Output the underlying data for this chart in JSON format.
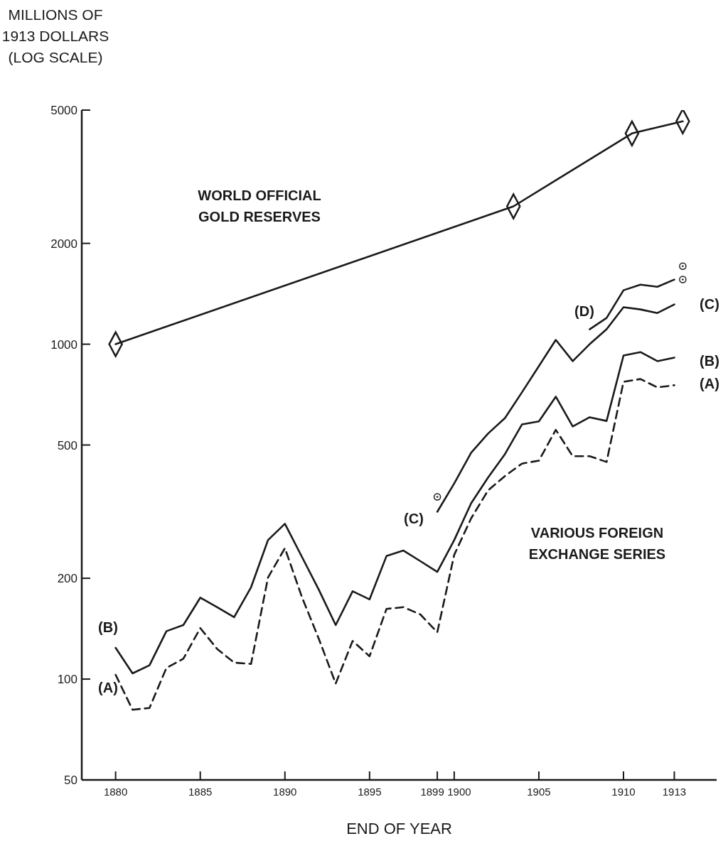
{
  "chart_data": {
    "type": "line",
    "ylabel": "MILLIONS OF 1913 DOLLARS (LOG SCALE)",
    "xlabel": "END OF YEAR",
    "log": "y",
    "xlim": [
      1878,
      1915.5
    ],
    "xticks": [
      1880,
      1885,
      1890,
      1895,
      1899,
      1900,
      1905,
      1910,
      1913
    ],
    "ylim": [
      50,
      5000
    ],
    "yticks": [
      50,
      100,
      200,
      500,
      1000,
      2000,
      5000
    ],
    "grid": false,
    "legend": false,
    "series": [
      {
        "color": "#1a1a1a",
        "marker": "diamond",
        "line_style": "solid",
        "x": [
          1880,
          1903.5,
          1910.5,
          1913.5
        ],
        "values": [
          1000,
          2580,
          4260,
          4630
        ]
      },
      {
        "color": "#1a1a1a",
        "marker": "none",
        "line_style": "dashed",
        "x": [
          1880,
          1881,
          1882,
          1883,
          1884,
          1885,
          1886,
          1887,
          1888,
          1889,
          1890,
          1891,
          1892,
          1893,
          1894,
          1895,
          1896,
          1897,
          1898,
          1899,
          1900,
          1901,
          1902,
          1903,
          1904,
          1905,
          1906,
          1907,
          1908,
          1909,
          1910,
          1911,
          1912,
          1913
        ],
        "values": [
          103,
          81,
          82,
          108,
          115,
          142,
          123,
          112,
          111,
          201,
          246,
          176,
          132,
          97,
          130,
          117,
          162,
          164,
          156,
          138,
          235,
          302,
          366,
          404,
          440,
          449,
          555,
          463,
          463,
          445,
          772,
          787,
          743,
          754
        ]
      },
      {
        "color": "#1a1a1a",
        "marker": "none",
        "line_style": "solid",
        "x": [
          1880,
          1881,
          1882,
          1883,
          1884,
          1885,
          1886,
          1887,
          1888,
          1889,
          1890,
          1891,
          1892,
          1893,
          1894,
          1895,
          1896,
          1897,
          1898,
          1899,
          1900,
          1901,
          1902,
          1903,
          1904,
          1905,
          1906,
          1907,
          1908,
          1909,
          1910,
          1911,
          1912,
          1913
        ],
        "values": [
          124,
          104,
          110,
          139,
          145,
          175,
          164,
          153,
          188,
          260,
          291,
          232,
          185,
          145,
          183,
          173,
          233,
          242,
          225,
          209,
          260,
          335,
          400,
          470,
          576,
          588,
          697,
          568,
          605,
          590,
          925,
          947,
          890,
          912
        ]
      },
      {
        "color": "#1a1a1a",
        "marker": "none",
        "line_style": "solid",
        "x": [
          1899,
          1900,
          1901,
          1902,
          1903,
          1904,
          1905,
          1906,
          1907,
          1908,
          1909,
          1910,
          1911,
          1912,
          1913
        ],
        "values": [
          316,
          384,
          474,
          541,
          602,
          718,
          860,
          1030,
          890,
          1000,
          1108,
          1289,
          1270,
          1239,
          1314
        ]
      },
      {
        "color": "#1a1a1a",
        "marker": "none",
        "line_style": "solid",
        "x": [
          1908,
          1909,
          1910,
          1911,
          1912,
          1913
        ],
        "values": [
          1108,
          1198,
          1449,
          1506,
          1484,
          1559
        ]
      },
      {
        "type": "scatter",
        "color": "#1a1a1a",
        "marker": "circle",
        "x": [
          1899,
          1913.5,
          1913.5
        ],
        "values": [
          350,
          1710,
          1560
        ]
      }
    ],
    "annotations": [
      "WORLD OFFICIAL GOLD RESERVES",
      "VARIOUS FOREIGN EXCHANGE SERIES",
      "(B)",
      "(A)",
      "(C)",
      "(D)",
      "(C)",
      "(B)",
      "(A)"
    ]
  }
}
